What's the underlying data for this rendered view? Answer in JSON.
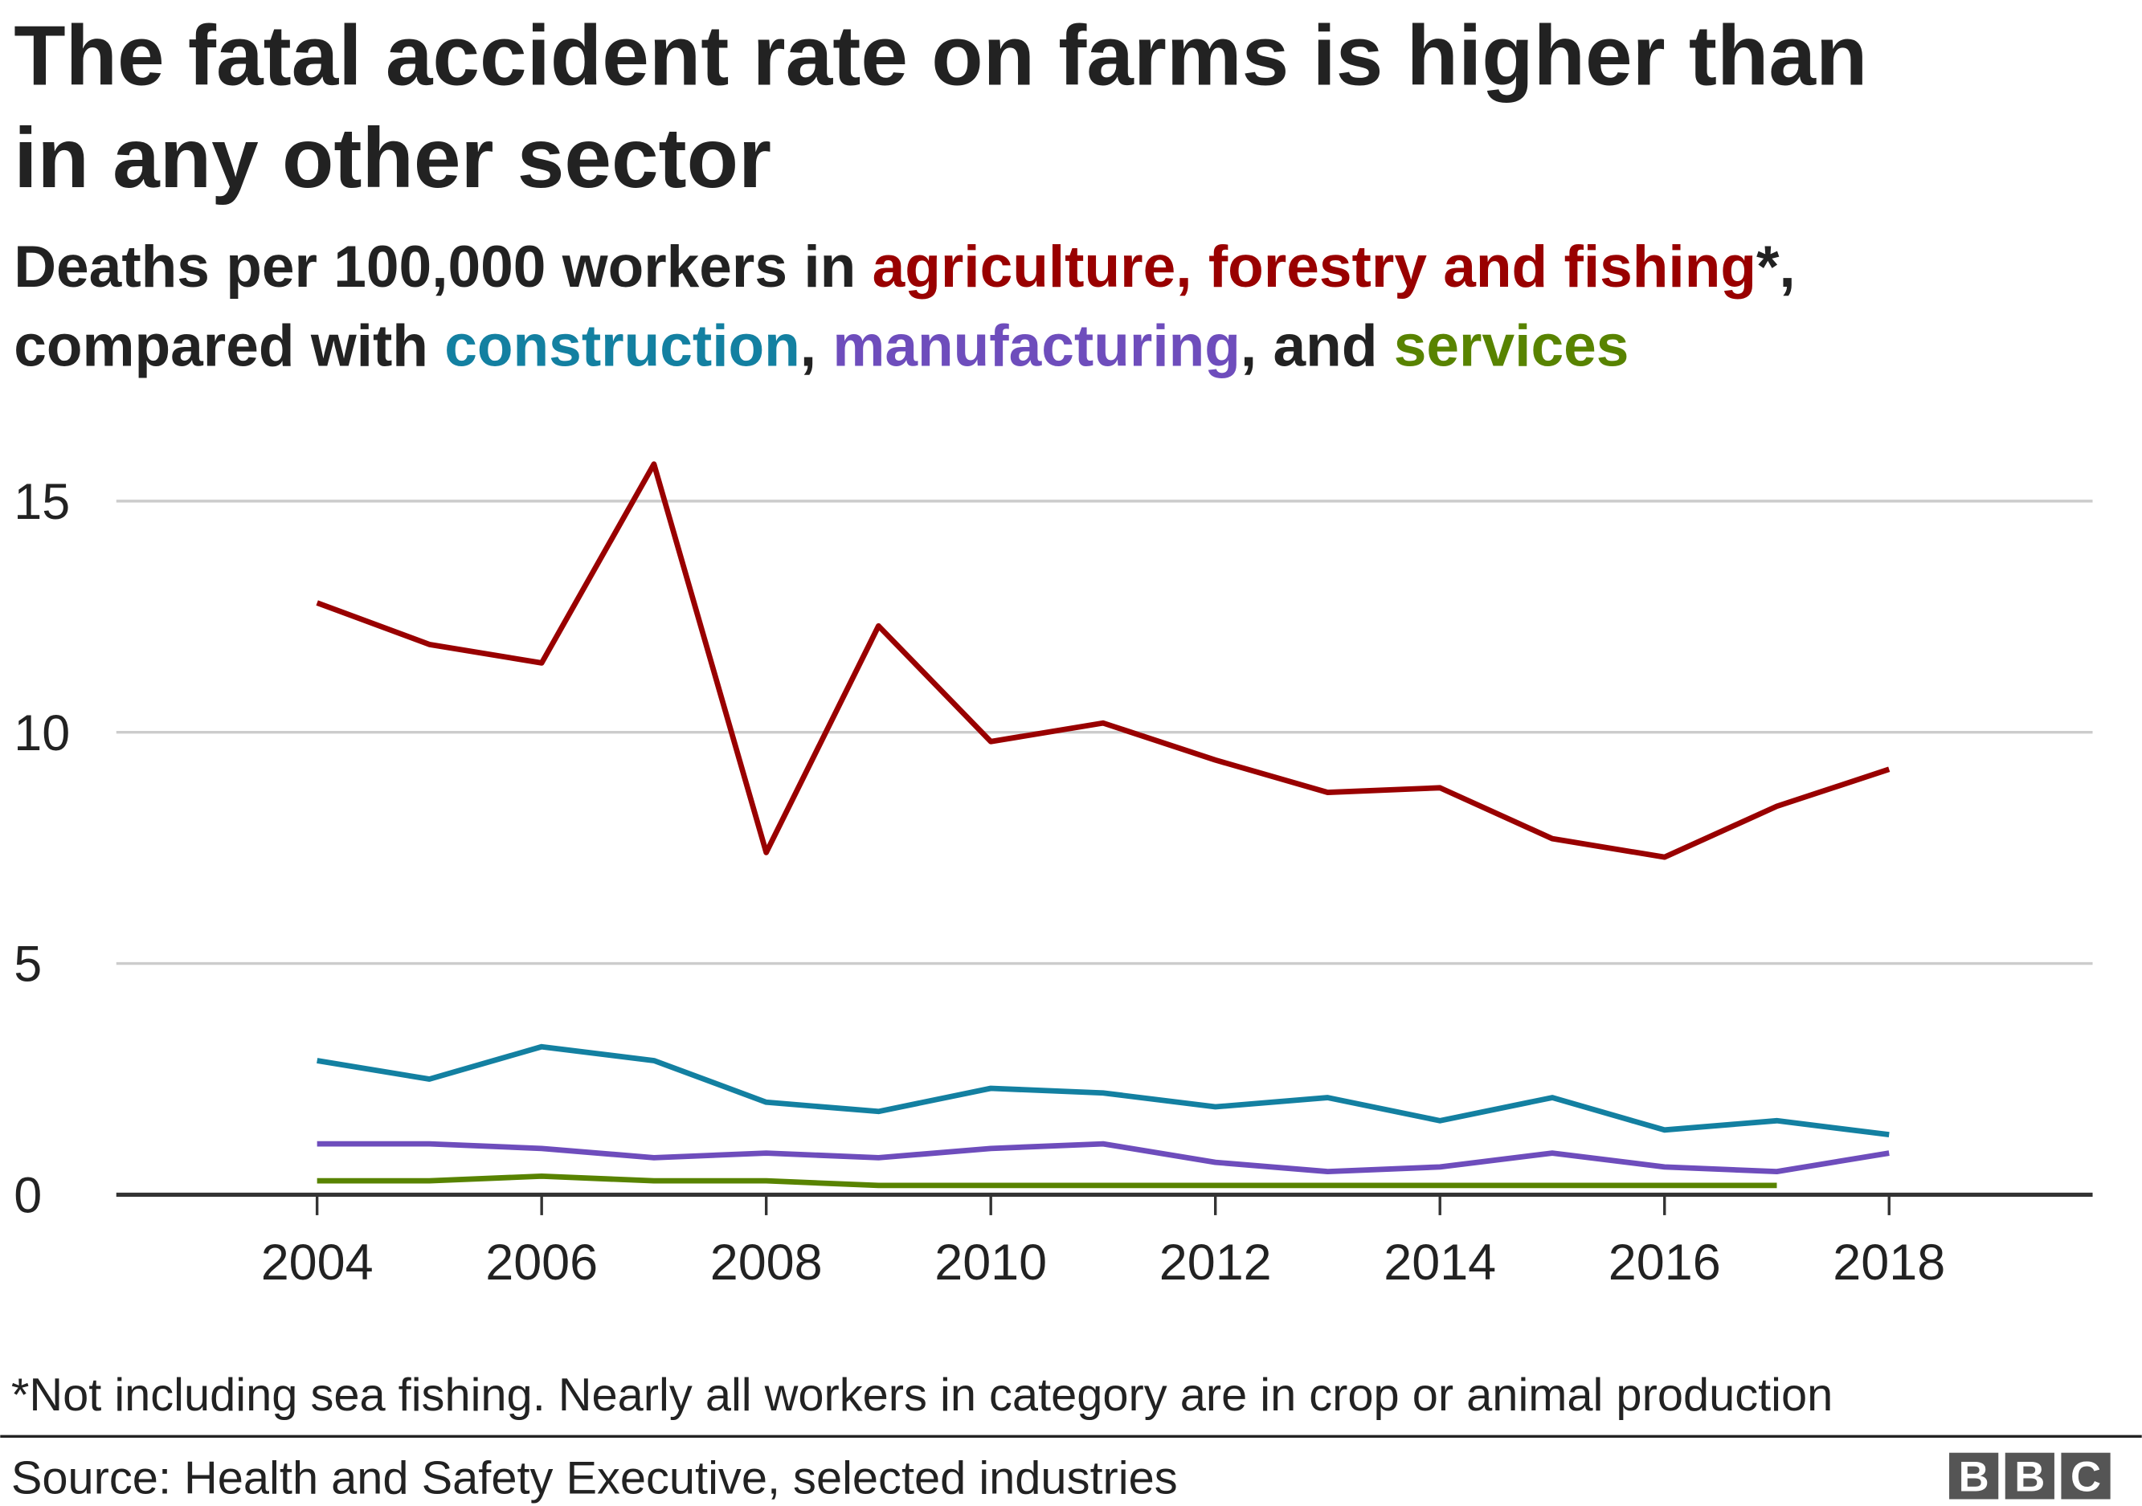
{
  "title_line1": "The fatal accident rate on farms is higher than",
  "title_line2": "in any other sector",
  "subtitle": {
    "prefix": "Deaths per 100,000 workers in ",
    "agri": "agriculture, forestry and fishing",
    "star": "*,",
    "compared": "compared with ",
    "construction": "construction",
    "comma1": ", ",
    "manufacturing": "manufacturing",
    "and": ", and ",
    "services": "services"
  },
  "footnote": "*Not including sea fishing. Nearly all workers in category are in crop or animal production",
  "source": "Source: Health and Safety Executive, selected industries",
  "logo": "BBC",
  "chart_data": {
    "type": "line",
    "title": "The fatal accident rate on farms is higher than in any other sector",
    "ylabel": "Deaths per 100,000 workers",
    "ylim": [
      0,
      16
    ],
    "yticks": [
      0,
      5,
      10,
      15
    ],
    "xticks": [
      2004,
      2006,
      2008,
      2010,
      2012,
      2014,
      2016,
      2018
    ],
    "x": [
      2004,
      2005,
      2006,
      2007,
      2008,
      2009,
      2010,
      2011,
      2012,
      2013,
      2014,
      2015,
      2016,
      2017,
      2018
    ],
    "grid": true,
    "series": [
      {
        "name": "agriculture, forestry and fishing",
        "color": "#990000",
        "values": [
          12.8,
          11.9,
          11.5,
          15.8,
          7.4,
          12.3,
          9.8,
          10.2,
          9.4,
          8.7,
          8.8,
          7.7,
          7.3,
          8.4,
          9.2
        ]
      },
      {
        "name": "construction",
        "color": "#1380A1",
        "values": [
          2.9,
          2.5,
          3.2,
          2.9,
          2.0,
          1.8,
          2.3,
          2.2,
          1.9,
          2.1,
          1.6,
          2.1,
          1.4,
          1.6,
          1.3
        ]
      },
      {
        "name": "manufacturing",
        "color": "#6E4DBC",
        "values": [
          1.1,
          1.1,
          1.0,
          0.8,
          0.9,
          0.8,
          1.0,
          1.1,
          0.7,
          0.5,
          0.6,
          0.9,
          0.6,
          0.5,
          0.9
        ]
      },
      {
        "name": "services",
        "color": "#588300",
        "values": [
          0.3,
          0.3,
          0.4,
          0.3,
          0.3,
          0.2,
          0.2,
          0.2,
          0.2,
          0.2,
          0.2,
          0.2,
          0.2,
          0.2,
          null
        ]
      }
    ]
  }
}
